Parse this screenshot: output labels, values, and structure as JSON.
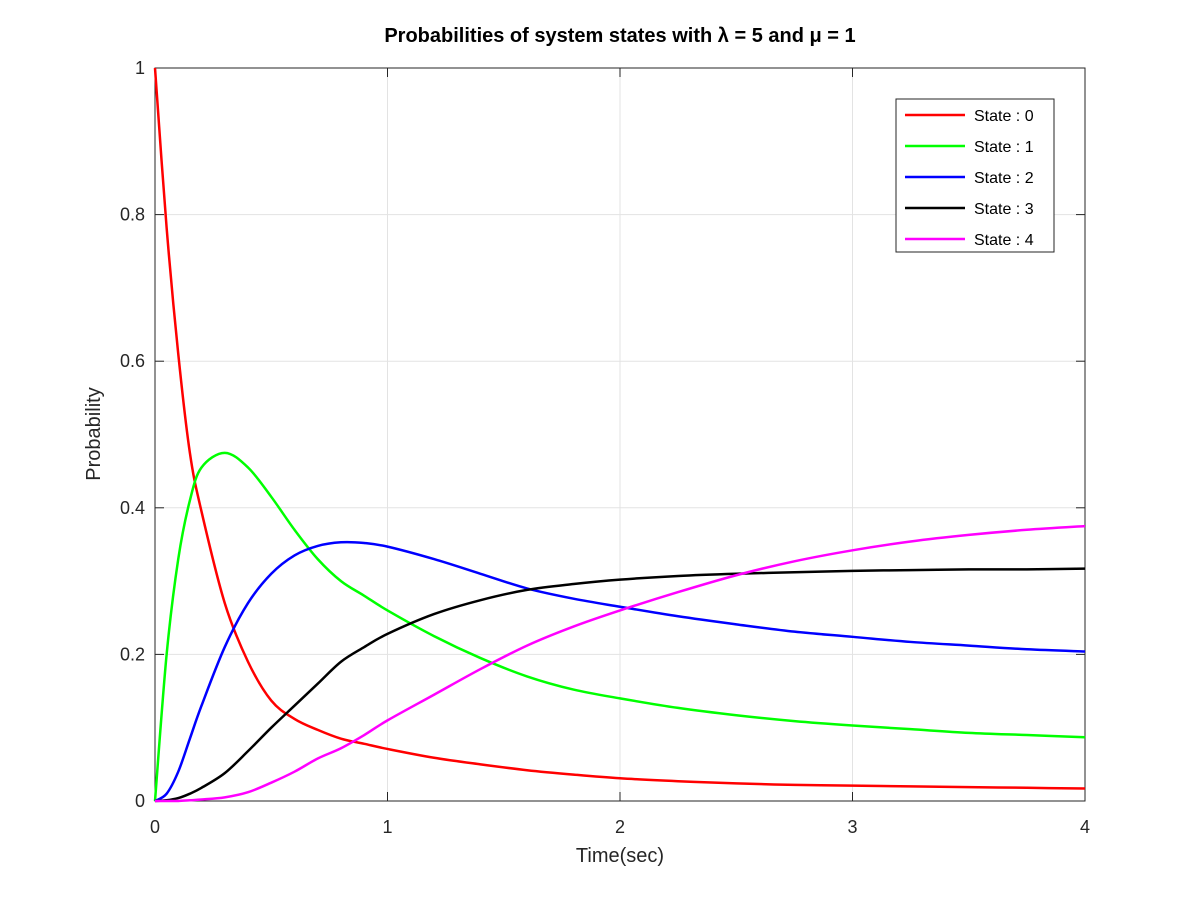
{
  "chart_data": {
    "type": "line",
    "title": "Probabilities of system states with λ = 5 and μ = 1",
    "xlabel": "Time(sec)",
    "ylabel": "Probability",
    "xlim": [
      0,
      4
    ],
    "ylim": [
      0,
      1
    ],
    "xticks": [
      0,
      1,
      2,
      3,
      4
    ],
    "xtick_labels": [
      "0",
      "1",
      "2",
      "3",
      "4"
    ],
    "yticks": [
      0,
      0.2,
      0.4,
      0.6,
      0.8,
      1
    ],
    "ytick_labels": [
      "0",
      "0.2",
      "0.4",
      "0.6",
      "0.8",
      "1"
    ],
    "grid": true,
    "legend_position": "top-right",
    "x": [
      0,
      0.05,
      0.1,
      0.15,
      0.2,
      0.3,
      0.4,
      0.5,
      0.6,
      0.7,
      0.8,
      0.9,
      1.0,
      1.2,
      1.4,
      1.6,
      1.8,
      2.0,
      2.25,
      2.5,
      2.75,
      3.0,
      3.25,
      3.5,
      3.75,
      4.0
    ],
    "series": [
      {
        "name": "State : 0",
        "color": "#ff0000",
        "values": [
          1.0,
          0.782,
          0.61,
          0.475,
          0.395,
          0.27,
          0.19,
          0.137,
          0.112,
          0.097,
          0.085,
          0.078,
          0.071,
          0.059,
          0.05,
          0.042,
          0.036,
          0.031,
          0.027,
          0.024,
          0.022,
          0.021,
          0.02,
          0.019,
          0.018,
          0.017
        ]
      },
      {
        "name": "State : 1",
        "color": "#00ff00",
        "values": [
          0.0,
          0.2,
          0.33,
          0.41,
          0.455,
          0.475,
          0.455,
          0.415,
          0.37,
          0.33,
          0.3,
          0.28,
          0.26,
          0.225,
          0.195,
          0.17,
          0.152,
          0.14,
          0.127,
          0.117,
          0.109,
          0.103,
          0.098,
          0.093,
          0.09,
          0.087
        ]
      },
      {
        "name": "State : 2",
        "color": "#0000ff",
        "values": [
          0.0,
          0.01,
          0.04,
          0.085,
          0.13,
          0.21,
          0.27,
          0.31,
          0.335,
          0.348,
          0.353,
          0.352,
          0.347,
          0.33,
          0.31,
          0.29,
          0.276,
          0.265,
          0.252,
          0.241,
          0.231,
          0.224,
          0.217,
          0.212,
          0.207,
          0.204
        ]
      },
      {
        "name": "State : 3",
        "color": "#000000",
        "values": [
          0.0,
          0.001,
          0.004,
          0.01,
          0.018,
          0.038,
          0.068,
          0.1,
          0.13,
          0.16,
          0.19,
          0.21,
          0.228,
          0.255,
          0.274,
          0.288,
          0.296,
          0.302,
          0.307,
          0.31,
          0.312,
          0.314,
          0.315,
          0.316,
          0.316,
          0.317
        ]
      },
      {
        "name": "State : 4",
        "color": "#ff00ff",
        "values": [
          0.0,
          0.0,
          0.0,
          0.001,
          0.002,
          0.005,
          0.012,
          0.025,
          0.04,
          0.058,
          0.072,
          0.09,
          0.11,
          0.145,
          0.18,
          0.212,
          0.238,
          0.26,
          0.285,
          0.308,
          0.327,
          0.342,
          0.354,
          0.363,
          0.37,
          0.375
        ]
      }
    ]
  }
}
